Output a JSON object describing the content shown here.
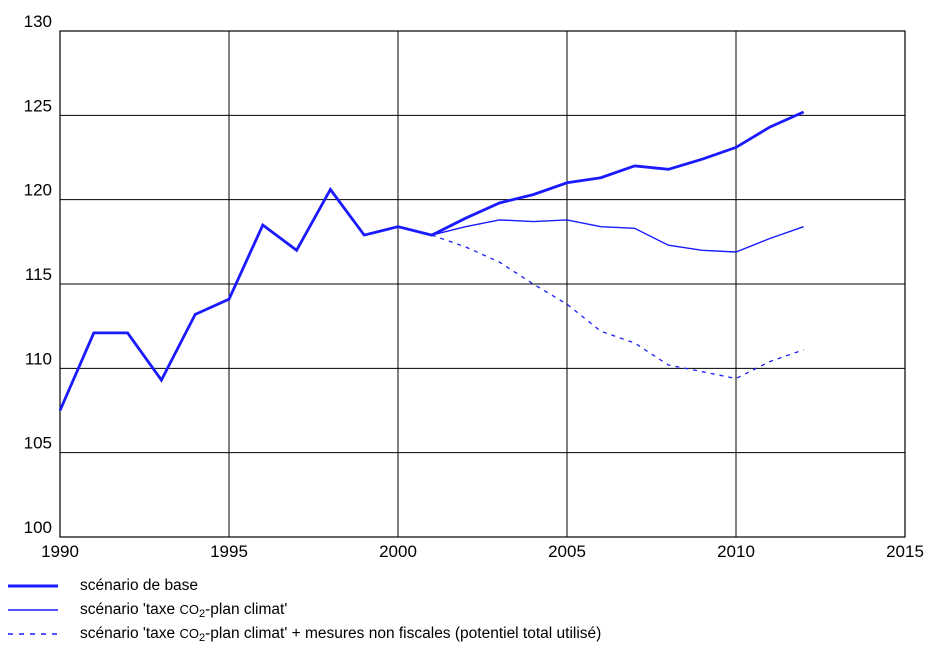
{
  "chart_data": {
    "type": "line",
    "xlim": [
      1990,
      2015
    ],
    "ylim": [
      100,
      130
    ],
    "x_ticks": [
      "1990",
      "1995",
      "2000",
      "2005",
      "2010",
      "2015"
    ],
    "y_ticks": [
      "100",
      "105",
      "110",
      "115",
      "120",
      "125",
      "130"
    ],
    "grid": true,
    "legend_position": "bottom-left",
    "series": [
      {
        "name": "scénario de base",
        "style": "thick-solid",
        "color": "#1a1aff",
        "x": [
          1990,
          1991,
          1992,
          1993,
          1994,
          1995,
          1996,
          1997,
          1998,
          1999,
          2000,
          2001,
          2002,
          2003,
          2004,
          2005,
          2006,
          2007,
          2008,
          2009,
          2010,
          2011,
          2012
        ],
        "y": [
          107.5,
          112.1,
          112.1,
          109.3,
          113.2,
          114.1,
          118.5,
          117.0,
          120.6,
          117.9,
          118.4,
          117.9,
          118.9,
          119.8,
          120.3,
          121.0,
          121.3,
          122.0,
          121.8,
          122.4,
          123.1,
          124.3,
          125.2
        ]
      },
      {
        "name": "scénario 'taxe CO2-plan climat'",
        "style": "thin-solid",
        "color": "#1a1aff",
        "x": [
          2001,
          2002,
          2003,
          2004,
          2005,
          2006,
          2007,
          2008,
          2009,
          2010,
          2011,
          2012
        ],
        "y": [
          117.9,
          118.4,
          118.8,
          118.7,
          118.8,
          118.4,
          118.3,
          117.3,
          117.0,
          116.9,
          117.7,
          118.4
        ]
      },
      {
        "name": "scénario 'taxe CO2-plan climat' + mesures non fiscales (potentiel total utilisé)",
        "style": "dashed",
        "color": "#1a1aff",
        "x": [
          2001,
          2002,
          2003,
          2004,
          2005,
          2006,
          2007,
          2008,
          2009,
          2010,
          2011,
          2012
        ],
        "y": [
          117.9,
          117.2,
          116.3,
          115.0,
          113.8,
          112.2,
          111.5,
          110.2,
          109.8,
          109.4,
          110.4,
          111.1
        ]
      }
    ]
  },
  "legend": {
    "items": [
      {
        "prefix": "scénario de base",
        "co2": "",
        "sub": "",
        "suffix": ""
      },
      {
        "prefix": "scénario 'taxe ",
        "co2": "CO",
        "sub": "2",
        "suffix": "-plan climat'"
      },
      {
        "prefix": "scénario 'taxe ",
        "co2": "CO",
        "sub": "2",
        "suffix": "-plan climat' + mesures non fiscales (potentiel total utilisé)"
      }
    ]
  }
}
